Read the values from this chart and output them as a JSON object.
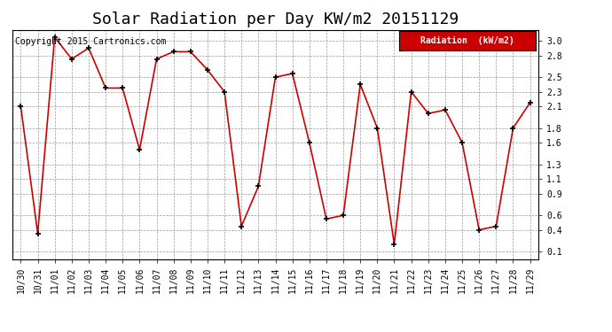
{
  "title": "Solar Radiation per Day KW/m2 20151129",
  "dates": [
    "10/30",
    "10/31",
    "11/01",
    "11/02",
    "11/03",
    "11/04",
    "11/05",
    "11/06",
    "11/07",
    "11/08",
    "11/09",
    "11/10",
    "11/11",
    "11/12",
    "11/13",
    "11/14",
    "11/15",
    "11/16",
    "11/17",
    "11/18",
    "11/19",
    "11/20",
    "11/21",
    "11/22",
    "11/23",
    "11/24",
    "11/25",
    "11/26",
    "11/27",
    "11/28",
    "11/29"
  ],
  "values": [
    2.1,
    0.35,
    3.05,
    2.75,
    2.9,
    2.35,
    2.35,
    1.5,
    2.75,
    2.85,
    2.85,
    2.6,
    2.3,
    0.45,
    1.0,
    2.5,
    2.55,
    1.6,
    0.55,
    0.6,
    2.4,
    1.8,
    0.2,
    2.3,
    2.0,
    2.05,
    1.6,
    0.4,
    0.45,
    1.8,
    2.15
  ],
  "line_color": "#cc0000",
  "marker_color": "#000000",
  "background_color": "#ffffff",
  "grid_color": "#999999",
  "legend_label": "Radiation  (kW/m2)",
  "legend_bg": "#cc0000",
  "legend_text_color": "#ffffff",
  "copyright_text": "Copyright 2015 Cartronics.com",
  "ylim": [
    0.0,
    3.15
  ],
  "yticks": [
    0.1,
    0.4,
    0.6,
    0.9,
    1.1,
    1.3,
    1.6,
    1.8,
    2.1,
    2.3,
    2.5,
    2.8,
    3.0
  ],
  "title_fontsize": 13,
  "tick_fontsize": 7,
  "copyright_fontsize": 7
}
